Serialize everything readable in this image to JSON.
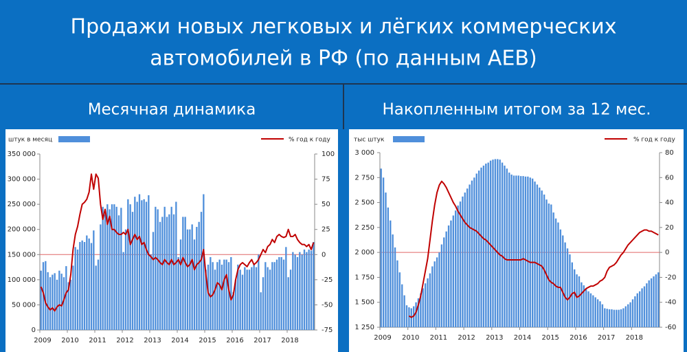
{
  "title": [
    "Продажи новых легковых и лёгких коммерческих",
    "автомобилей в РФ (по данным АЕВ)"
  ],
  "chart_data": [
    {
      "type": "combo",
      "title": "Месячная динамика",
      "categories": [
        "2009",
        null,
        null,
        null,
        null,
        null,
        null,
        null,
        null,
        null,
        null,
        null,
        "2010",
        null,
        null,
        null,
        null,
        null,
        null,
        null,
        null,
        null,
        null,
        null,
        "2011",
        null,
        null,
        null,
        null,
        null,
        null,
        null,
        null,
        null,
        null,
        null,
        "2012",
        null,
        null,
        null,
        null,
        null,
        null,
        null,
        null,
        null,
        null,
        null,
        "2013",
        null,
        null,
        null,
        null,
        null,
        null,
        null,
        null,
        null,
        null,
        null,
        "2014",
        null,
        null,
        null,
        null,
        null,
        null,
        null,
        null,
        null,
        null,
        null,
        "2015",
        null,
        null,
        null,
        null,
        null,
        null,
        null,
        null,
        null,
        null,
        null,
        "2016",
        null,
        null,
        null,
        null,
        null,
        null,
        null,
        null,
        null,
        null,
        null,
        "2017",
        null,
        null,
        null,
        null,
        null,
        null,
        null,
        null,
        null,
        null,
        null,
        "2018",
        null,
        null,
        null,
        null,
        null,
        null,
        null,
        null,
        null,
        null,
        null
      ],
      "series": [
        {
          "name": "штук в месяц",
          "type": "bar",
          "color": "#4f8fdb",
          "values": [
            118000,
            135000,
            137000,
            115000,
            105000,
            110000,
            113000,
            100000,
            118000,
            112000,
            105000,
            127000,
            95000,
            100000,
            128000,
            165000,
            160000,
            175000,
            178000,
            175000,
            188000,
            182000,
            173000,
            198000,
            128000,
            140000,
            210000,
            245000,
            230000,
            250000,
            240000,
            250000,
            250000,
            245000,
            228000,
            243000,
            155000,
            200000,
            260000,
            250000,
            235000,
            265000,
            255000,
            270000,
            258000,
            260000,
            255000,
            268000,
            150000,
            195000,
            245000,
            240000,
            215000,
            225000,
            245000,
            225000,
            230000,
            245000,
            230000,
            255000,
            145000,
            180000,
            225000,
            225000,
            200000,
            200000,
            210000,
            180000,
            205000,
            215000,
            235000,
            270000,
            120000,
            130000,
            145000,
            135000,
            120000,
            135000,
            140000,
            130000,
            140000,
            140000,
            135000,
            145000,
            75000,
            100000,
            130000,
            120000,
            110000,
            125000,
            120000,
            120000,
            125000,
            130000,
            125000,
            150000,
            75000,
            105000,
            135000,
            125000,
            120000,
            135000,
            135000,
            140000,
            145000,
            145000,
            140000,
            165000,
            105000,
            120000,
            155000,
            150000,
            145000,
            155000,
            150000,
            160000,
            155000,
            160000,
            158000,
            175000
          ]
        },
        {
          "name": "% год к году",
          "type": "line",
          "axis": "y2",
          "color": "#c00000",
          "values": [
            -32,
            -38,
            -48,
            -52,
            -55,
            -53,
            -56,
            -52,
            -50,
            -51,
            -45,
            -38,
            -35,
            -20,
            5,
            20,
            28,
            40,
            50,
            52,
            55,
            62,
            80,
            65,
            80,
            76,
            50,
            35,
            45,
            30,
            38,
            25,
            25,
            22,
            20,
            20,
            22,
            20,
            25,
            10,
            15,
            20,
            15,
            18,
            10,
            12,
            5,
            0,
            -2,
            -5,
            -3,
            -5,
            -8,
            -10,
            -5,
            -8,
            -10,
            -5,
            -10,
            -8,
            -5,
            -10,
            -3,
            -8,
            -12,
            -10,
            -5,
            -15,
            -10,
            -8,
            -5,
            5,
            -20,
            -38,
            -42,
            -40,
            -35,
            -28,
            -30,
            -35,
            -25,
            -20,
            -35,
            -45,
            -40,
            -25,
            -15,
            -10,
            -8,
            -10,
            -12,
            -8,
            -5,
            -10,
            -8,
            -5,
            0,
            5,
            2,
            8,
            10,
            15,
            12,
            18,
            20,
            18,
            17,
            18,
            25,
            18,
            18,
            20,
            15,
            12,
            10,
            10,
            8,
            10,
            5,
            12
          ]
        }
      ],
      "ylim": [
        0,
        350000
      ],
      "yticks": [
        0,
        {
          "value": 50000,
          "label": "50 000"
        },
        {
          "value": 100000,
          "label": "100 000"
        },
        {
          "value": 150000,
          "label": "150 000"
        },
        {
          "value": 200000,
          "label": "200 000"
        },
        {
          "value": 250000,
          "label": "250 000"
        },
        {
          "value": 300000,
          "label": "300 000"
        },
        {
          "value": 350000,
          "label": "350 000"
        }
      ],
      "y2lim": [
        -75,
        100
      ],
      "y2ticks": [
        -75,
        -50,
        -25,
        0,
        25,
        50,
        75,
        100
      ],
      "y2_zero_line": true
    },
    {
      "type": "combo",
      "title": "Накопленным итогом за 12 мес.",
      "categories": [
        "2009",
        null,
        null,
        null,
        null,
        null,
        null,
        null,
        null,
        null,
        null,
        null,
        "2010",
        null,
        null,
        null,
        null,
        null,
        null,
        null,
        null,
        null,
        null,
        null,
        "2011",
        null,
        null,
        null,
        null,
        null,
        null,
        null,
        null,
        null,
        null,
        null,
        "2012",
        null,
        null,
        null,
        null,
        null,
        null,
        null,
        null,
        null,
        null,
        null,
        "2013",
        null,
        null,
        null,
        null,
        null,
        null,
        null,
        null,
        null,
        null,
        null,
        "2014",
        null,
        null,
        null,
        null,
        null,
        null,
        null,
        null,
        null,
        null,
        null,
        "2015",
        null,
        null,
        null,
        null,
        null,
        null,
        null,
        null,
        null,
        null,
        null,
        "2016",
        null,
        null,
        null,
        null,
        null,
        null,
        null,
        null,
        null,
        null,
        null,
        "2017",
        null,
        null,
        null,
        null,
        null,
        null,
        null,
        null,
        null,
        null,
        null,
        "2018",
        null,
        null,
        null,
        null,
        null,
        null,
        null,
        null,
        null,
        null,
        null
      ],
      "series": [
        {
          "name": "тыс штук",
          "type": "bar",
          "color": "#4f8fdb",
          "values": [
            2840,
            2750,
            2600,
            2450,
            2320,
            2180,
            2050,
            1920,
            1800,
            1680,
            1570,
            1470,
            1450,
            1440,
            1460,
            1500,
            1540,
            1590,
            1640,
            1690,
            1740,
            1790,
            1860,
            1910,
            1950,
            2000,
            2080,
            2150,
            2210,
            2270,
            2320,
            2370,
            2420,
            2470,
            2510,
            2560,
            2600,
            2640,
            2680,
            2720,
            2750,
            2790,
            2820,
            2850,
            2870,
            2890,
            2900,
            2920,
            2930,
            2935,
            2935,
            2930,
            2900,
            2870,
            2840,
            2800,
            2780,
            2770,
            2770,
            2770,
            2765,
            2765,
            2760,
            2760,
            2750,
            2740,
            2710,
            2680,
            2650,
            2620,
            2580,
            2530,
            2490,
            2480,
            2400,
            2340,
            2300,
            2230,
            2170,
            2100,
            2040,
            1980,
            1900,
            1830,
            1780,
            1760,
            1700,
            1670,
            1640,
            1610,
            1590,
            1570,
            1550,
            1530,
            1510,
            1480,
            1440,
            1435,
            1430,
            1430,
            1425,
            1425,
            1425,
            1430,
            1440,
            1460,
            1480,
            1500,
            1530,
            1560,
            1590,
            1610,
            1640,
            1660,
            1690,
            1720,
            1740,
            1760,
            1780,
            1800
          ]
        },
        {
          "name": "% год к году",
          "type": "line",
          "axis": "y2",
          "color": "#c00000",
          "values": [
            null,
            null,
            null,
            null,
            null,
            null,
            null,
            null,
            null,
            null,
            null,
            null,
            -51,
            -52,
            -51,
            -48,
            -42,
            -35,
            -25,
            -15,
            -5,
            10,
            25,
            38,
            48,
            54,
            57,
            55,
            52,
            48,
            44,
            40,
            37,
            33,
            30,
            27,
            24,
            22,
            20,
            19,
            18,
            17,
            15,
            13,
            11,
            10,
            8,
            6,
            4,
            2,
            0,
            -2,
            -3,
            -5,
            -6,
            -6,
            -6,
            -6,
            -6,
            -6,
            -6,
            -5,
            -6,
            -7,
            -8,
            -8,
            -8,
            -9,
            -10,
            -11,
            -14,
            -18,
            -22,
            -24,
            -25,
            -27,
            -28,
            -28,
            -32,
            -36,
            -38,
            -36,
            -33,
            -32,
            -36,
            -35,
            -33,
            -31,
            -29,
            -28,
            -27,
            -27,
            -26,
            -25,
            -23,
            -22,
            -20,
            -15,
            -12,
            -11,
            -10,
            -8,
            -5,
            -2,
            0,
            3,
            6,
            8,
            10,
            12,
            14,
            16,
            17,
            18,
            18,
            17,
            17,
            16,
            15,
            14
          ]
        }
      ],
      "ylim": [
        1250,
        3000
      ],
      "yticks": [
        {
          "value": 1250,
          "label": "1 250"
        },
        {
          "value": 1500,
          "label": "1 500"
        },
        {
          "value": 1750,
          "label": "1 750"
        },
        {
          "value": 2000,
          "label": "2 000"
        },
        {
          "value": 2250,
          "label": "2 250"
        },
        {
          "value": 2500,
          "label": "2 500"
        },
        {
          "value": 2750,
          "label": "2 750"
        },
        {
          "value": 3000,
          "label": "3 000"
        }
      ],
      "y2lim": [
        -60,
        80
      ],
      "y2ticks": [
        -60,
        -40,
        -20,
        0,
        20,
        40,
        60,
        80
      ],
      "y2_zero_line": true
    }
  ]
}
